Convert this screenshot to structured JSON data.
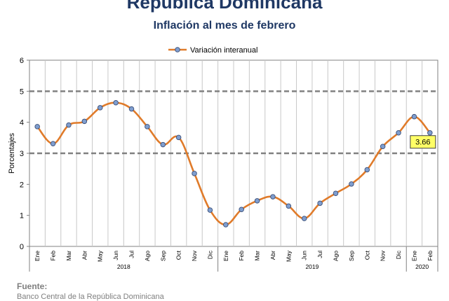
{
  "header": {
    "title": "República Dominicana",
    "subtitle": "Inflación al mes de febrero"
  },
  "footer": {
    "source_label": "Fuente:",
    "source_text": "Banco Central de la República Dominicana"
  },
  "chart_data": {
    "type": "line",
    "ylabel": "Porcentajes",
    "ylim": [
      0,
      6
    ],
    "yticks": [
      0,
      1,
      2,
      3,
      4,
      5,
      6
    ],
    "grid": "vertical",
    "legend_position": "top-center",
    "x": [
      "Ene",
      "Feb",
      "Mar",
      "Abr",
      "May",
      "Jun",
      "Jul",
      "Ago",
      "Sep",
      "Oct",
      "Nov",
      "Dic",
      "Ene",
      "Feb",
      "Mar",
      "Abr",
      "May",
      "Jun",
      "Jul",
      "Ago",
      "Sep",
      "Oct",
      "Nov",
      "Dic",
      "Ene",
      "Feb"
    ],
    "year_groups": [
      {
        "label": "2018",
        "count": 12
      },
      {
        "label": "2019",
        "count": 12
      },
      {
        "label": "2020",
        "count": 2
      }
    ],
    "series": [
      {
        "name": "Variación interanual",
        "color": "#e07b2a",
        "marker_color": "#7f9ecf",
        "values": [
          3.86,
          3.31,
          3.91,
          4.03,
          4.47,
          4.63,
          4.43,
          3.86,
          3.28,
          3.51,
          2.35,
          1.17,
          0.7,
          1.19,
          1.47,
          1.6,
          1.3,
          0.9,
          1.39,
          1.71,
          2.01,
          2.47,
          3.22,
          3.66,
          4.18,
          3.66
        ]
      }
    ],
    "target_band": {
      "upper": 5,
      "lower": 3,
      "style": "dashed",
      "color": "#808080"
    },
    "annotation": {
      "text": "3.66",
      "point_index": 25,
      "background": "#ffff66"
    }
  }
}
